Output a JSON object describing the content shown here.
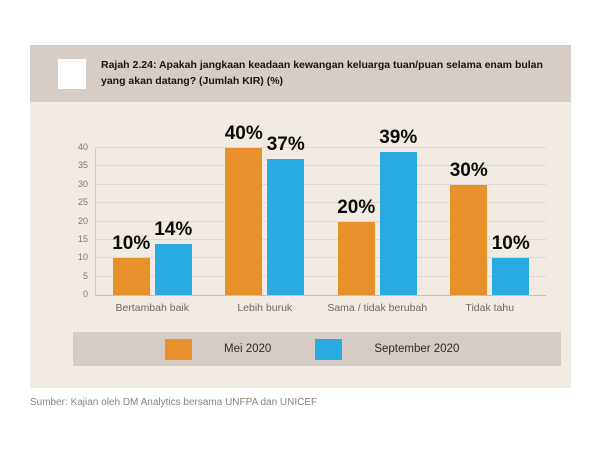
{
  "figure": {
    "source": "Sumber: Kajian oleh DM Analytics bersama UNFPA dan UNICEF"
  },
  "colors": {
    "page_background": "#ffffff",
    "panel_background": "#F1EBE4",
    "title_bar_background": "#D6CDC7",
    "legend_background": "#D5CCC6",
    "series_mei": "#E8912C",
    "series_september": "#29ABE2",
    "gridline": "#DFD8D1",
    "tick_text": "#7C766F",
    "category_text": "#6E6862",
    "source_text": "#8A847E"
  },
  "chart_data": {
    "type": "bar",
    "title": "Rajah 2.24: Apakah jangkaan keadaan kewangan keluarga tuan/puan selama enam bulan yang akan datang? (Jumlah KIR) (%)",
    "categories": [
      "Bertambah baik",
      "Lebih buruk",
      "Sama / tidak berubah",
      "Tidak tahu"
    ],
    "series": [
      {
        "name": "Mei 2020",
        "color": "#E8912C",
        "values": [
          10,
          40,
          20,
          30
        ]
      },
      {
        "name": "September 2020",
        "color": "#29ABE2",
        "values": [
          14,
          37,
          39,
          10
        ]
      }
    ],
    "value_label_suffix": "%",
    "xlabel": "",
    "ylabel": "",
    "ylim": [
      0,
      40
    ],
    "yticks": [
      0,
      5,
      10,
      15,
      20,
      25,
      30,
      35,
      40
    ],
    "grid": true,
    "legend_position": "bottom"
  }
}
